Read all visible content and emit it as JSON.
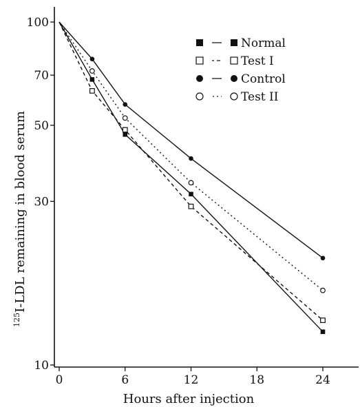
{
  "chart_data": {
    "type": "line",
    "title": "",
    "xlabel": "Hours after injection",
    "ylabel_sup": "125",
    "ylabel_main": "I-LDL remaining in blood serum",
    "y_scale": "log",
    "xlim": [
      -3,
      30
    ],
    "ylim": [
      10,
      100
    ],
    "x_ticks": [
      0,
      6,
      12,
      18,
      24
    ],
    "x_tick_labels": [
      "0",
      "6",
      "12",
      "18",
      "24"
    ],
    "y_ticks": [
      10,
      30,
      50,
      70,
      100
    ],
    "y_tick_labels": [
      "10",
      "30",
      "50",
      "70",
      "100"
    ],
    "grid": false,
    "legend_position": "top-right",
    "series": [
      {
        "name": "Normal",
        "marker": "filled-square",
        "line": "solid",
        "color": "#111111",
        "x": [
          0,
          3,
          6,
          12,
          24
        ],
        "y": [
          100,
          68,
          47,
          31.5,
          12.5
        ]
      },
      {
        "name": "Test I",
        "marker": "open-square",
        "line": "dashed",
        "color": "#111111",
        "x": [
          0,
          3,
          6,
          12,
          24
        ],
        "y": [
          100,
          63,
          48.5,
          29,
          13.5
        ]
      },
      {
        "name": "Control",
        "marker": "filled-circle",
        "line": "solid",
        "color": "#111111",
        "x": [
          0,
          3,
          6,
          12,
          24
        ],
        "y": [
          100,
          78,
          57.5,
          40,
          20.5
        ]
      },
      {
        "name": "Test II",
        "marker": "open-circle",
        "line": "dotted",
        "color": "#111111",
        "x": [
          0,
          3,
          6,
          12,
          24
        ],
        "y": [
          100,
          72,
          52.5,
          34,
          16.5
        ]
      }
    ]
  }
}
